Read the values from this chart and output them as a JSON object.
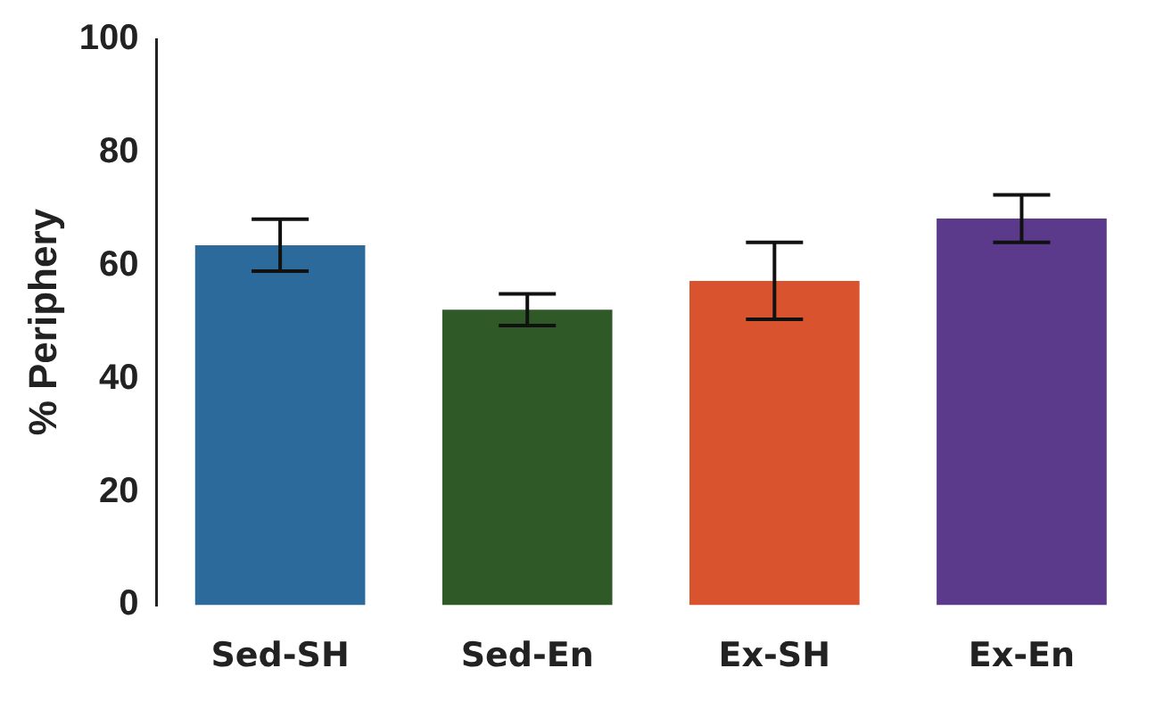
{
  "chart_data": {
    "type": "bar",
    "ylabel": "% Periphery",
    "categories": [
      "Sed-SH",
      "Sed-En",
      "Ex-SH",
      "Ex-En"
    ],
    "values": [
      63.6,
      52.2,
      57.3,
      68.3
    ],
    "errors": [
      4.6,
      2.8,
      6.8,
      4.2
    ],
    "colors": [
      "#2c6a9c",
      "#2f5a28",
      "#d8532e",
      "#5b3a8c"
    ],
    "ylim": [
      0,
      100
    ],
    "yticks": [
      0,
      20,
      40,
      60,
      80,
      100
    ],
    "grid": false,
    "legend": false
  }
}
